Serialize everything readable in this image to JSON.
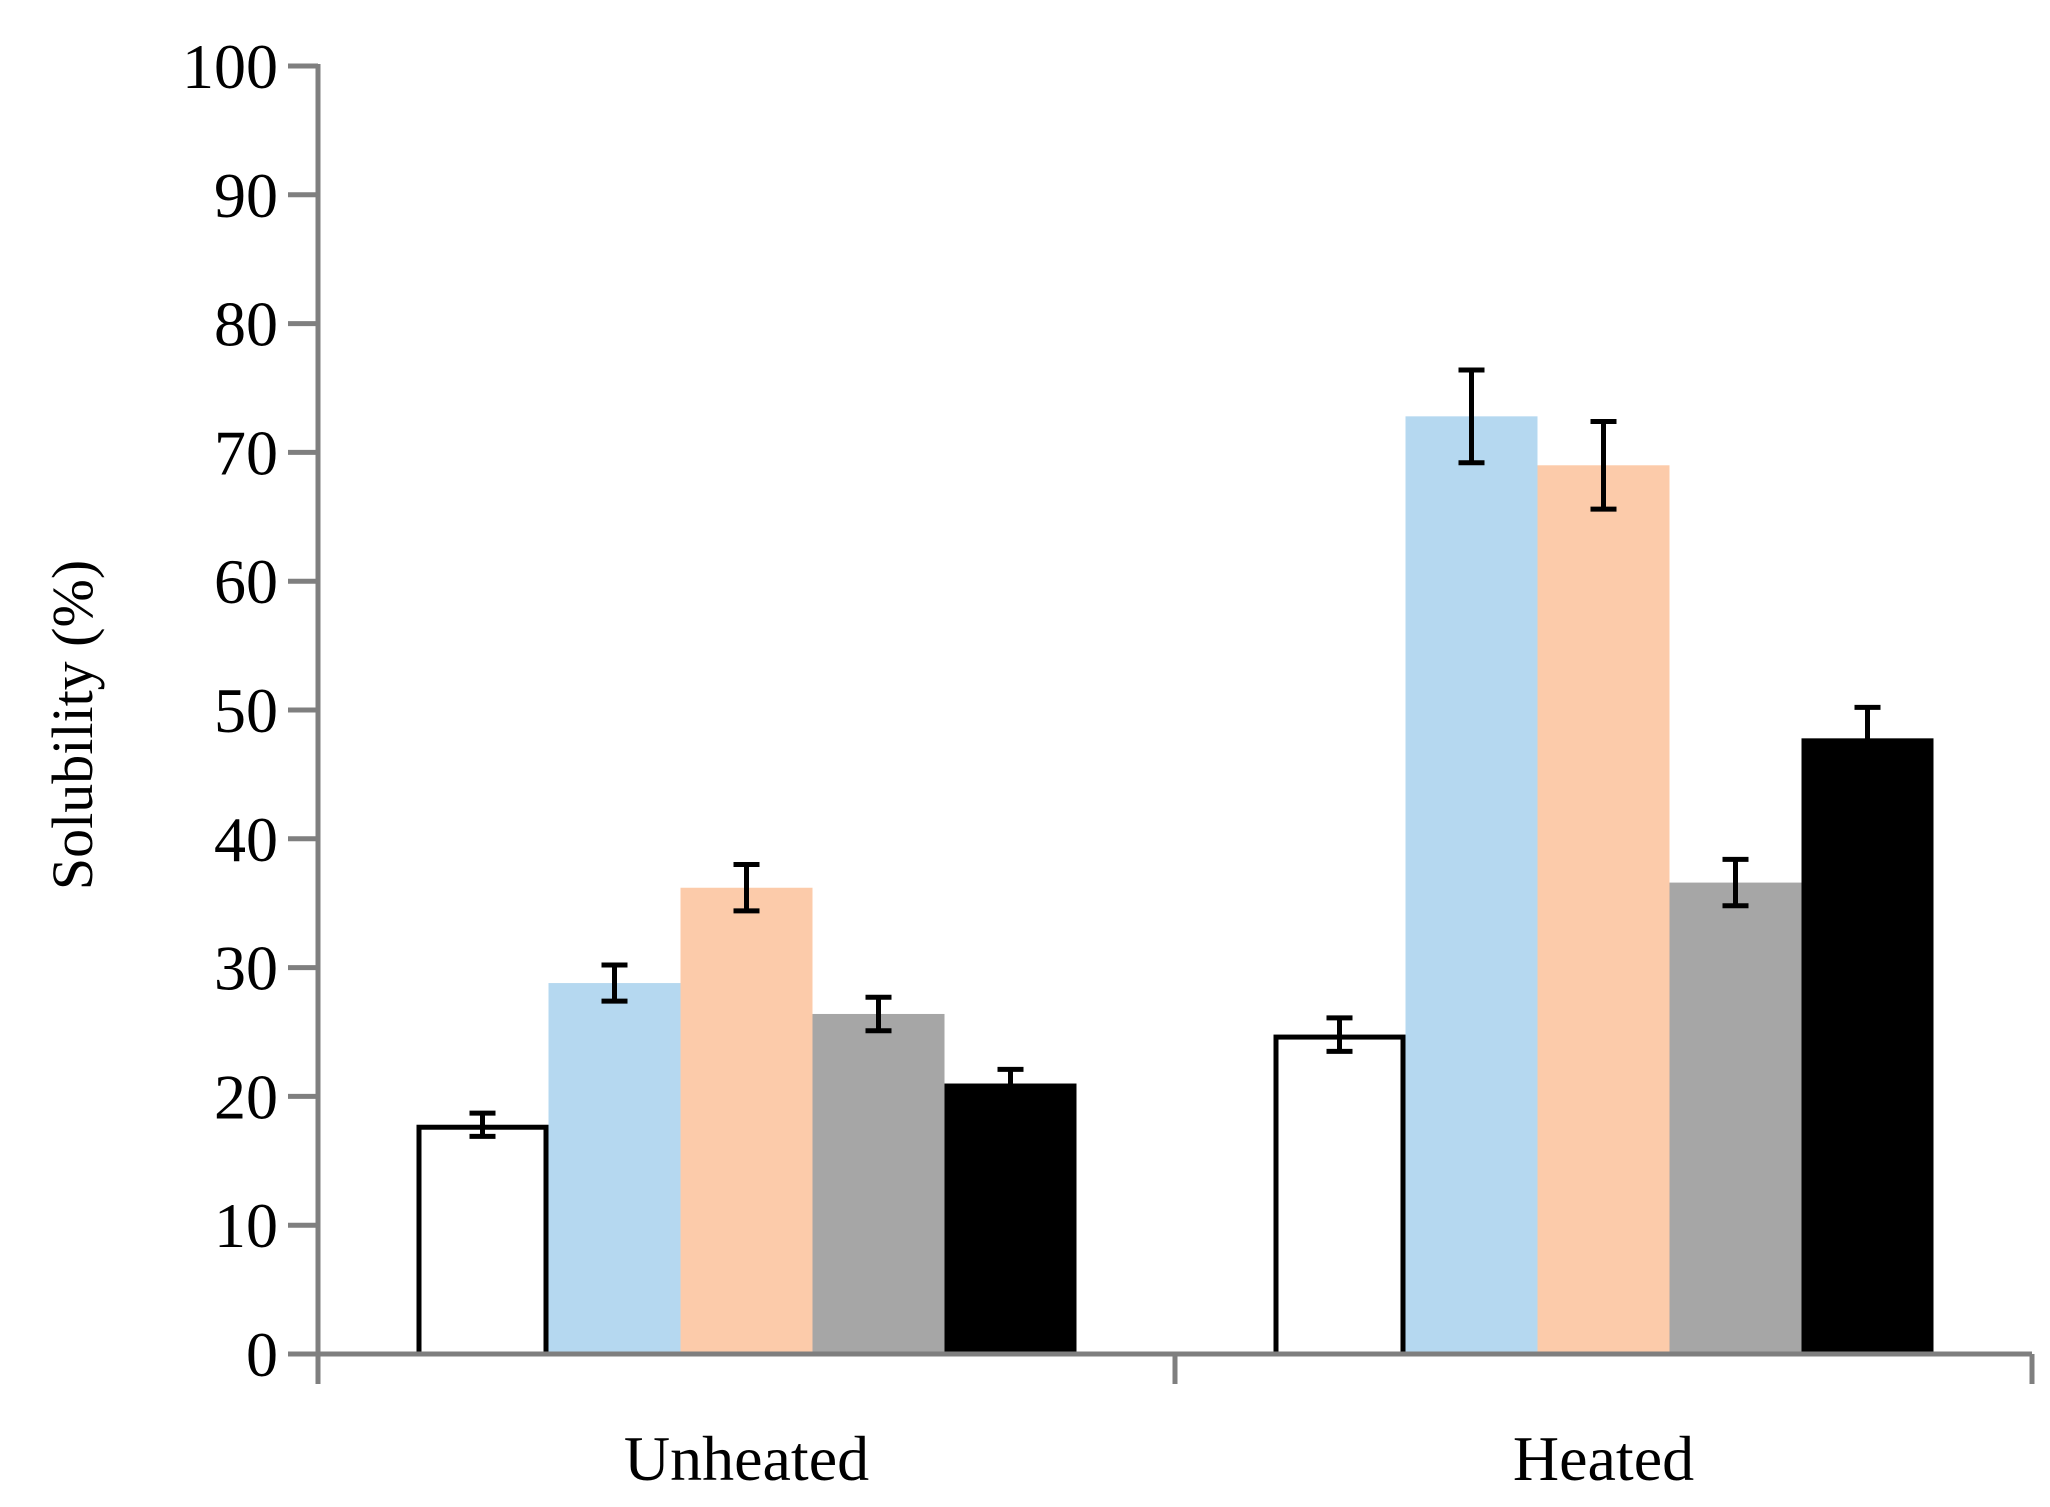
{
  "chart_data": {
    "type": "bar",
    "title": "",
    "xlabel": "",
    "ylabel": "Solubility (%)",
    "ylim": [
      0,
      100
    ],
    "yticks": [
      0,
      10,
      20,
      30,
      40,
      50,
      60,
      70,
      80,
      90,
      100
    ],
    "categories": [
      "Unheated",
      "Heated"
    ],
    "grid": false,
    "legend": "none",
    "series": [
      {
        "name": "series-1",
        "color": "#ffffff",
        "stroke": "#000000",
        "values": [
          17.8,
          24.8
        ],
        "errors": [
          0.9,
          1.3
        ]
      },
      {
        "name": "series-2",
        "color": "#b5d8f0",
        "stroke": "none",
        "values": [
          28.8,
          72.8
        ],
        "errors": [
          1.4,
          3.6
        ]
      },
      {
        "name": "series-3",
        "color": "#fccbaa",
        "stroke": "none",
        "values": [
          36.2,
          69.0
        ],
        "errors": [
          1.8,
          3.4
        ]
      },
      {
        "name": "series-4",
        "color": "#a6a6a6",
        "stroke": "none",
        "values": [
          26.4,
          36.6
        ],
        "errors": [
          1.3,
          1.8
        ]
      },
      {
        "name": "series-5",
        "color": "#000000",
        "stroke": "none",
        "values": [
          21.0,
          47.8
        ],
        "errors": [
          1.1,
          2.4
        ]
      }
    ],
    "axis_color": "#7f7f7f",
    "error_bar_color": "#000000"
  }
}
